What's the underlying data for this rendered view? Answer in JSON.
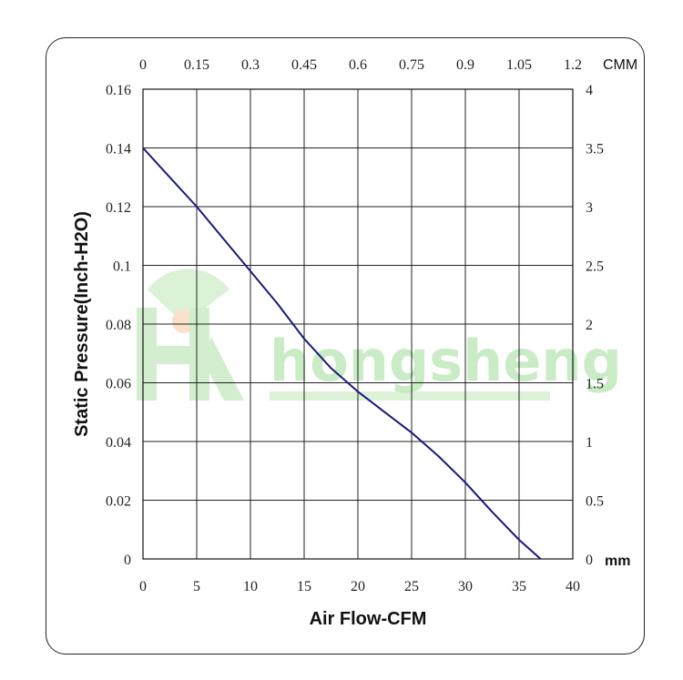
{
  "watermark": {
    "text": "hongsheng",
    "color": "#9edc97"
  },
  "chart_data": {
    "type": "line",
    "xlabel": "Air Flow-CFM",
    "ylabel": "Static Pressure(Inch-H2O)",
    "x_top_unit": "CMM",
    "y_right_unit": "mm",
    "xlim": [
      0,
      40
    ],
    "ylim": [
      0,
      0.16
    ],
    "x_ticks": [
      0,
      5,
      10,
      15,
      20,
      25,
      30,
      35,
      40
    ],
    "y_ticks": [
      0,
      0.02,
      0.04,
      0.06,
      0.08,
      0.1,
      0.12,
      0.14,
      0.16
    ],
    "x_ticks_labels": [
      "0",
      "5",
      "10",
      "15",
      "20",
      "25",
      "30",
      "35",
      "40"
    ],
    "y_ticks_labels": [
      "0",
      "0.02",
      "0.04",
      "0.06",
      "0.08",
      "0.1",
      "0.12",
      "0.14",
      "0.16"
    ],
    "top_ticks_labels": [
      "0",
      "0.15",
      "0.3",
      "0.45",
      "0.6",
      "0.75",
      "0.9",
      "1.05",
      "1.2"
    ],
    "right_ticks_labels": [
      "0",
      "0.5",
      "1",
      "1.5",
      "2",
      "2.5",
      "3",
      "3.5",
      "4"
    ],
    "grid": true,
    "line_color": "#1a1a7a",
    "series": [
      {
        "x": [
          0,
          2.5,
          5,
          7.5,
          10,
          12.5,
          15,
          17.5,
          20,
          22.5,
          25,
          27.5,
          30,
          32.5,
          35,
          37
        ],
        "y": [
          0.14,
          0.13,
          0.12,
          0.109,
          0.098,
          0.087,
          0.075,
          0.065,
          0.057,
          0.05,
          0.043,
          0.035,
          0.026,
          0.016,
          0.0065,
          0.0
        ]
      }
    ]
  }
}
